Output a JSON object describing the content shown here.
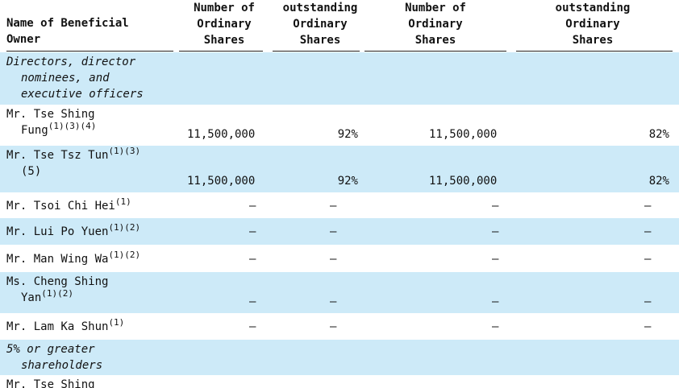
{
  "header": {
    "name_col": [
      "Name of Beneficial",
      "Owner"
    ],
    "col1": [
      "Number of",
      "Ordinary",
      "Shares"
    ],
    "col2": [
      "outstanding",
      "Ordinary",
      "Shares"
    ],
    "col3": [
      "Number of",
      "Ordinary",
      "Shares"
    ],
    "col4": [
      "outstanding",
      "Ordinary",
      "Shares"
    ]
  },
  "section1": [
    "Directors, director",
    "nominees, and",
    "executive officers"
  ],
  "rows": [
    {
      "name1": "Mr.  Tse Shing",
      "name2": "Fung",
      "sup": "(1)(3)(4)",
      "v1": "11,500,000",
      "v2": "92%",
      "v3": "11,500,000",
      "v4": "82%"
    },
    {
      "name1": "Mr.  Tse Tsz Tun",
      "sup1": "(1)(3)",
      "name2": "(5)",
      "v1": "11,500,000",
      "v2": "92%",
      "v3": "11,500,000",
      "v4": "82%"
    },
    {
      "name1": "Mr.  Tsoi Chi Hei",
      "sup": "(1)",
      "dash": "—"
    },
    {
      "name1": "Mr.  Lui Po Yuen",
      "sup": "(1)(2)",
      "dash": "—"
    },
    {
      "name1": "Mr.  Man Wing Wa",
      "sup": "(1)(2)",
      "dash": "—"
    },
    {
      "name1": "Ms. Cheng Shing",
      "name2": "Yan",
      "sup": "(1)(2)",
      "dash": "—"
    },
    {
      "name1": "Mr.  Lam Ka Shun",
      "sup": "(1)",
      "dash": "—"
    }
  ],
  "section2": [
    "5% or greater",
    "shareholders"
  ],
  "partial_row": "Mr.  Tse Shing"
}
